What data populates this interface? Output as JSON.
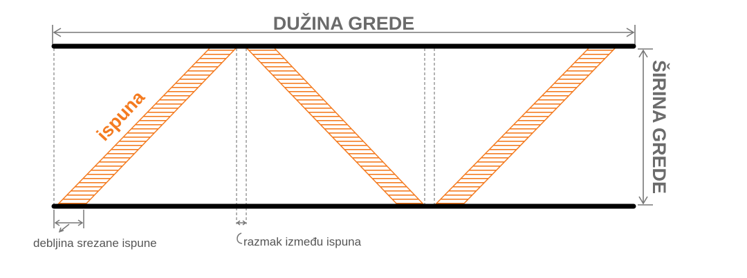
{
  "labels": {
    "length": "DUŽINA GREDE",
    "width": "ŠIRINA GREDE",
    "infill": "ispuna",
    "thickness": "debljina srezane ispune",
    "spacing": "razmak između ispuna"
  },
  "colors": {
    "beam": "#000000",
    "infill": "#f47b20",
    "dimension": "#777777",
    "text": "#6b6b6b"
  }
}
